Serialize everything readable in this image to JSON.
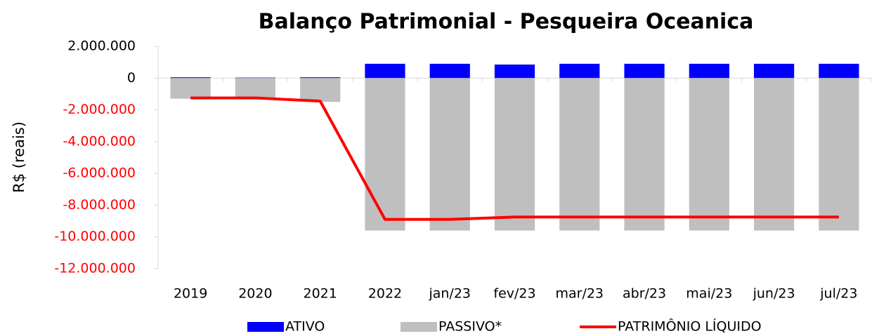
{
  "chart_data": {
    "type": "bar_line",
    "title": "Balanço Patrimonial - Pesqueira Oceanica",
    "y_label": "R$ (reais)",
    "categories": [
      "2019",
      "2020",
      "2021",
      "2022",
      "jan/23",
      "fev/23",
      "mar/23",
      "abr/23",
      "mai/23",
      "jun/23",
      "jul/23"
    ],
    "series": [
      {
        "name": "ATIVO",
        "type": "bar",
        "color": "#0000ff",
        "values": [
          50000,
          30000,
          50000,
          900000,
          900000,
          850000,
          900000,
          900000,
          900000,
          900000,
          900000
        ]
      },
      {
        "name": "PASSIVO*",
        "type": "bar",
        "color": "#bfbfbf",
        "values": [
          -1300000,
          -1300000,
          -1500000,
          -9600000,
          -9600000,
          -9600000,
          -9600000,
          -9600000,
          -9600000,
          -9600000,
          -9600000
        ]
      },
      {
        "name": "PATRIMÔNIO LÍQUIDO",
        "type": "line",
        "color": "#ff0000",
        "values": [
          -1250000,
          -1250000,
          -1450000,
          -8900000,
          -8900000,
          -8750000,
          -8750000,
          -8750000,
          -8750000,
          -8750000,
          -8750000
        ]
      }
    ],
    "ylim": [
      -12000000,
      2000000
    ],
    "yticks": [
      {
        "value": -12000000,
        "label": "-12.000.000"
      },
      {
        "value": -10000000,
        "label": "-10.000.000"
      },
      {
        "value": -8000000,
        "label": "-8.000.000"
      },
      {
        "value": -6000000,
        "label": "-6.000.000"
      },
      {
        "value": -4000000,
        "label": "-4.000.000"
      },
      {
        "value": -2000000,
        "label": "-2.000.000"
      },
      0,
      {
        "value": 2000000,
        "label": "2.000.000"
      }
    ],
    "ytick_negative_color": "#ff0000",
    "grid": false,
    "legend": "bottom"
  }
}
